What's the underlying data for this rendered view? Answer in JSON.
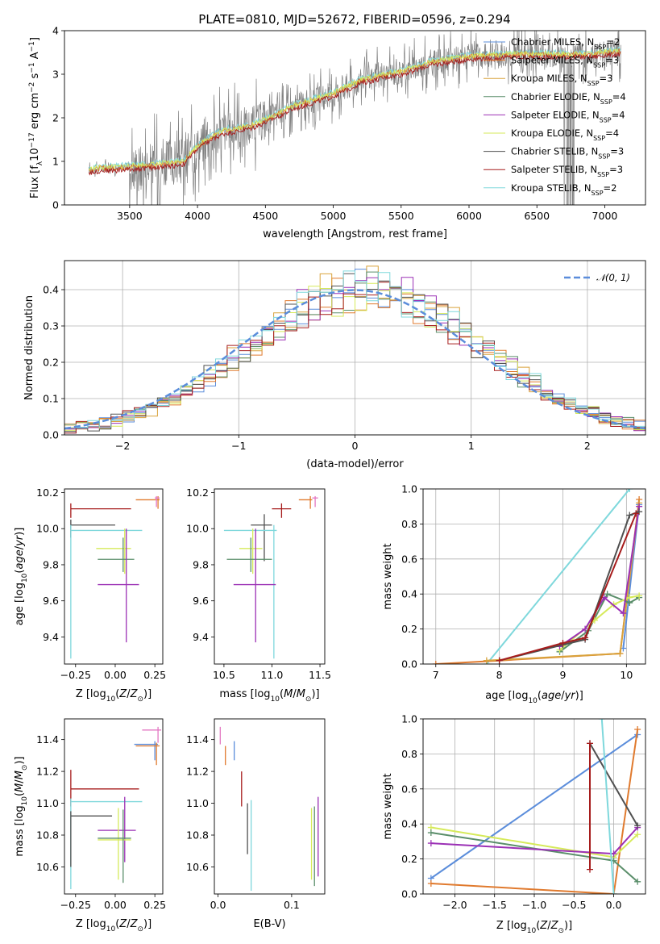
{
  "title": "PLATE=0810, MJD=52672, FIBERID=0596, z=0.294",
  "colors": {
    "chabrier_miles": "#5B8DDB",
    "salpeter_miles": "#E07A2E",
    "kroupa_miles": "#D9A23B",
    "chabrier_elodie": "#5A8E6A",
    "salpeter_elodie": "#9B30B5",
    "kroupa_elodie": "#D6EA5A",
    "chabrier_stelib": "#505050",
    "salpeter_stelib": "#A61C1C",
    "kroupa_stelib": "#7FD8DC",
    "data": "#808080",
    "normal": "#5B8DDB",
    "pink": "#E377C2",
    "grid": "#b0b0b0"
  },
  "chart_data": [
    {
      "id": "spectrum",
      "type": "line",
      "xlabel": "wavelength [Angstrom, rest frame]",
      "ylabel_parts": [
        "Flux [f",
        "λ",
        "10",
        "−17",
        " erg cm",
        "−2",
        " s",
        "−1",
        " A",
        "−1",
        "]"
      ],
      "xlim": [
        3020,
        7300
      ],
      "ylim": [
        0,
        4
      ],
      "xticks": [
        3500,
        4000,
        4500,
        5000,
        5500,
        6000,
        6500,
        7000
      ],
      "yticks": [
        0,
        1,
        2,
        3,
        4
      ],
      "model_x": [
        3200,
        3300,
        3400,
        3500,
        3600,
        3700,
        3800,
        3900,
        4000,
        4100,
        4200,
        4300,
        4400,
        4500,
        4600,
        4700,
        4800,
        4900,
        5000,
        5100,
        5200,
        5300,
        5400,
        5500,
        5600,
        5700,
        5800,
        5900,
        6000,
        6100,
        6200,
        6300,
        6400,
        6500,
        6600,
        6700,
        6800,
        6900,
        7000,
        7100
      ],
      "model_y": [
        0.8,
        0.85,
        0.85,
        0.88,
        0.9,
        0.92,
        0.95,
        1.0,
        1.35,
        1.55,
        1.7,
        1.75,
        1.82,
        1.95,
        2.1,
        2.25,
        2.35,
        2.45,
        2.55,
        2.7,
        2.85,
        2.92,
        3.0,
        3.05,
        3.15,
        3.25,
        3.3,
        3.35,
        3.4,
        3.42,
        3.42,
        3.45,
        3.45,
        3.45,
        3.45,
        3.45,
        3.45,
        3.45,
        3.5,
        3.52
      ],
      "legend": [
        {
          "label": "Chabrier MILES, N",
          "sub": "SSP",
          "val": "=2",
          "color": "chabrier_miles"
        },
        {
          "label": "Salpeter MILES, N",
          "sub": "SSP",
          "val": "=3",
          "color": "salpeter_miles"
        },
        {
          "label": "Kroupa MILES, N",
          "sub": "SSP",
          "val": "=3",
          "color": "kroupa_miles"
        },
        {
          "label": "Chabrier ELODIE, N",
          "sub": "SSP",
          "val": "=4",
          "color": "chabrier_elodie"
        },
        {
          "label": "Salpeter ELODIE, N",
          "sub": "SSP",
          "val": "=4",
          "color": "salpeter_elodie"
        },
        {
          "label": "Kroupa ELODIE, N",
          "sub": "SSP",
          "val": "=4",
          "color": "kroupa_elodie"
        },
        {
          "label": "Chabrier STELIB, N",
          "sub": "SSP",
          "val": "=3",
          "color": "chabrier_stelib"
        },
        {
          "label": "Salpeter STELIB, N",
          "sub": "SSP",
          "val": "=3",
          "color": "salpeter_stelib"
        },
        {
          "label": "Kroupa STELIB, N",
          "sub": "SSP",
          "val": "=2",
          "color": "kroupa_stelib"
        }
      ]
    },
    {
      "id": "residuals",
      "type": "histogram",
      "xlabel": "(data-model)/error",
      "ylabel": "Normed distribution",
      "xlim": [
        -2.5,
        2.5
      ],
      "ylim": [
        0,
        0.48
      ],
      "xticks": [
        -2,
        -1,
        0,
        1,
        2
      ],
      "xticklabels": [
        "−2",
        "−1",
        "0",
        "1",
        "2"
      ],
      "yticks": [
        0,
        0.1,
        0.2,
        0.3,
        0.4
      ],
      "yticklabels": [
        "0.0",
        "0.1",
        "0.2",
        "0.3",
        "0.4"
      ],
      "bin_width": 0.1,
      "bins_start": -2.5,
      "legend_label": "𝒩(0, 1)",
      "grid": true
    },
    {
      "id": "Z_age",
      "type": "errorbar",
      "xlabel": "Z [log10(Z/Z⊙)]",
      "ylabel": "age  [log10(age/yr)]",
      "xlim": [
        -0.32,
        0.3
      ],
      "ylim": [
        9.25,
        10.22
      ],
      "xticks": [
        -0.25,
        0.0,
        0.25
      ],
      "xticklabels": [
        "−0.25",
        "0.00",
        "0.25"
      ],
      "yticks": [
        9.4,
        9.6,
        9.8,
        10.0,
        10.2
      ],
      "yticklabels": [
        "9.4",
        "9.6",
        "9.8",
        "10.0",
        "10.2"
      ]
    },
    {
      "id": "mass_age",
      "type": "errorbar",
      "xlabel": "mass [log10(M/M⊙)]",
      "xlim": [
        10.4,
        11.55
      ],
      "ylim": [
        9.25,
        10.22
      ],
      "xticks": [
        10.5,
        11.0,
        11.5
      ],
      "xticklabels": [
        "10.5",
        "11.0",
        "11.5"
      ],
      "yticks": [
        9.4,
        9.6,
        9.8,
        10.0,
        10.2
      ],
      "yticklabels": [
        "9.4",
        "9.6",
        "9.8",
        "10.0",
        "10.2"
      ]
    },
    {
      "id": "age_weight",
      "type": "line",
      "xlabel": "age  [log10(age/yr)]",
      "ylabel": "mass weight",
      "xlim": [
        6.8,
        10.3
      ],
      "ylim": [
        0,
        1
      ],
      "xticks": [
        7,
        8,
        9,
        10
      ],
      "yticks": [
        0,
        0.2,
        0.4,
        0.6,
        0.8,
        1.0
      ],
      "yticklabels": [
        "0.0",
        "0.2",
        "0.4",
        "0.6",
        "0.8",
        "1.0"
      ],
      "grid": true,
      "series": [
        {
          "color": "kroupa_stelib",
          "x": [
            7.8,
            10.05
          ],
          "y": [
            0.0,
            1.0
          ]
        },
        {
          "color": "salpeter_miles",
          "x": [
            7.0,
            8.0,
            9.9,
            10.2
          ],
          "y": [
            0.0,
            0.02,
            0.06,
            0.94
          ]
        },
        {
          "color": "chabrier_miles",
          "x": [
            9.95,
            10.2
          ],
          "y": [
            0.09,
            0.91
          ]
        },
        {
          "color": "kroupa_miles",
          "x": [
            7.8,
            9.9,
            10.2
          ],
          "y": [
            0.02,
            0.06,
            0.92
          ]
        },
        {
          "color": "chabrier_elodie",
          "x": [
            8.95,
            9.4,
            9.7,
            10.05,
            10.2
          ],
          "y": [
            0.07,
            0.19,
            0.4,
            0.35,
            0.38
          ]
        },
        {
          "color": "kroupa_elodie",
          "x": [
            8.95,
            9.5,
            9.8,
            10.05,
            10.2
          ],
          "y": [
            0.08,
            0.25,
            0.34,
            0.38,
            0.39
          ]
        },
        {
          "color": "salpeter_elodie",
          "x": [
            8.95,
            9.35,
            9.65,
            9.95,
            10.2
          ],
          "y": [
            0.1,
            0.2,
            0.38,
            0.29,
            0.9
          ]
        },
        {
          "color": "chabrier_stelib",
          "x": [
            8.0,
            9.0,
            9.35,
            10.05,
            10.2
          ],
          "y": [
            0.02,
            0.11,
            0.14,
            0.85,
            0.87
          ]
        },
        {
          "color": "salpeter_stelib",
          "x": [
            8.0,
            9.0,
            9.35,
            10.15
          ],
          "y": [
            0.02,
            0.12,
            0.15,
            0.86
          ]
        }
      ]
    },
    {
      "id": "Z_mass",
      "type": "errorbar",
      "xlabel": "Z [log10(Z/Z⊙)]",
      "ylabel": "mass [log10(M/M⊙)]",
      "xlim": [
        -0.32,
        0.3
      ],
      "ylim": [
        10.43,
        11.53
      ],
      "xticks": [
        -0.25,
        0.0,
        0.25
      ],
      "xticklabels": [
        "−0.25",
        "0.00",
        "0.25"
      ],
      "yticks": [
        10.6,
        10.8,
        11.0,
        11.2,
        11.4
      ],
      "yticklabels": [
        "10.6",
        "10.8",
        "11.0",
        "11.2",
        "11.4"
      ]
    },
    {
      "id": "ebv_mass",
      "type": "errorbar",
      "xlabel": "E(B-V)",
      "xlim": [
        -0.005,
        0.145
      ],
      "ylim": [
        10.43,
        11.53
      ],
      "xticks": [
        0.0,
        0.1
      ],
      "xticklabels": [
        "0.0",
        "0.1"
      ],
      "yticks": [
        10.6,
        10.8,
        11.0,
        11.2,
        11.4
      ],
      "yticklabels": [
        "10.6",
        "10.8",
        "11.0",
        "11.2",
        "11.4"
      ]
    },
    {
      "id": "Z_weight",
      "type": "line",
      "xlabel": "Z [log10(Z/Z⊙)]",
      "ylabel": "mass weight",
      "xlim": [
        -2.4,
        0.4
      ],
      "ylim": [
        0,
        1
      ],
      "xticks": [
        -2.0,
        -1.5,
        -1.0,
        -0.5,
        0.0
      ],
      "xticklabels": [
        "−2.0",
        "−1.5",
        "−1.0",
        "−0.5",
        "0.0"
      ],
      "yticks": [
        0,
        0.2,
        0.4,
        0.6,
        0.8,
        1.0
      ],
      "yticklabels": [
        "0.0",
        "0.2",
        "0.4",
        "0.6",
        "0.8",
        "1.0"
      ],
      "grid": true,
      "series": [
        {
          "color": "chabrier_miles",
          "x": [
            -2.3,
            0.3
          ],
          "y": [
            0.09,
            0.91
          ]
        },
        {
          "color": "salpeter_miles",
          "x": [
            -2.3,
            0.0,
            0.3
          ],
          "y": [
            0.06,
            0.0,
            0.94
          ]
        },
        {
          "color": "kroupa_elodie",
          "x": [
            -2.3,
            0.0,
            0.3
          ],
          "y": [
            0.38,
            0.21,
            0.34
          ]
        },
        {
          "color": "chabrier_elodie",
          "x": [
            -2.3,
            0.0,
            0.3
          ],
          "y": [
            0.35,
            0.19,
            0.07
          ]
        },
        {
          "color": "salpeter_elodie",
          "x": [
            -2.3,
            0.0,
            0.3
          ],
          "y": [
            0.29,
            0.23,
            0.38
          ]
        },
        {
          "color": "chabrier_stelib",
          "x": [
            -0.3,
            0.3
          ],
          "y": [
            0.86,
            0.39
          ]
        },
        {
          "color": "salpeter_stelib",
          "x": [
            -0.3,
            -0.3
          ],
          "y": [
            0.14,
            0.86
          ]
        },
        {
          "color": "kroupa_stelib",
          "x": [
            -0.15,
            0.0
          ],
          "y": [
            1.0,
            0.0
          ]
        }
      ]
    }
  ]
}
